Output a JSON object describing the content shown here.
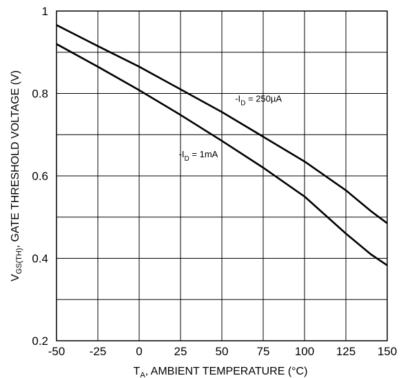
{
  "chart_data": {
    "type": "line",
    "title": "",
    "xlabel": {
      "main": "T",
      "sub": "A",
      "rest": ", AMBIENT TEMPERATURE (°C)"
    },
    "ylabel": {
      "main": "V",
      "sub": "GS(TH)",
      "rest": ", GATE THRESHOLD VOLTAGE (V)"
    },
    "xlim": [
      -50,
      150
    ],
    "ylim": [
      0.2,
      1
    ],
    "x_ticks": [
      -50,
      -25,
      0,
      25,
      50,
      75,
      100,
      125,
      150
    ],
    "x_tick_labels": [
      "-50",
      "-25",
      "0",
      "25",
      "50",
      "75",
      "100",
      "125",
      "150"
    ],
    "y_ticks": [
      0.2,
      0.4,
      0.6,
      0.8,
      1
    ],
    "y_tick_labels": [
      "0.2",
      "0.4",
      "0.6",
      "0.8",
      "1"
    ],
    "y_minor_grid": [
      0.3,
      0.5,
      0.7,
      0.9
    ],
    "grid": true,
    "series": [
      {
        "name": "-I_D = 250µA",
        "x": [
          -50,
          -25,
          0,
          25,
          50,
          75,
          100,
          125,
          140,
          150
        ],
        "values": [
          0.966,
          0.915,
          0.865,
          0.81,
          0.755,
          0.695,
          0.635,
          0.565,
          0.515,
          0.485
        ]
      },
      {
        "name": "-I_D = 1mA",
        "x": [
          -50,
          -25,
          0,
          25,
          50,
          75,
          100,
          125,
          140,
          150
        ],
        "values": [
          0.92,
          0.865,
          0.808,
          0.748,
          0.685,
          0.62,
          0.55,
          0.46,
          0.41,
          0.383
        ]
      }
    ],
    "annotations": [
      {
        "series": 0,
        "pre": "-I",
        "sub": "D",
        "post": " = 250µA",
        "at_x": 58,
        "at_y": 0.78
      },
      {
        "series": 1,
        "pre": "-I",
        "sub": "D",
        "post": " = 1mA",
        "at_x": 24,
        "at_y": 0.645
      }
    ]
  }
}
